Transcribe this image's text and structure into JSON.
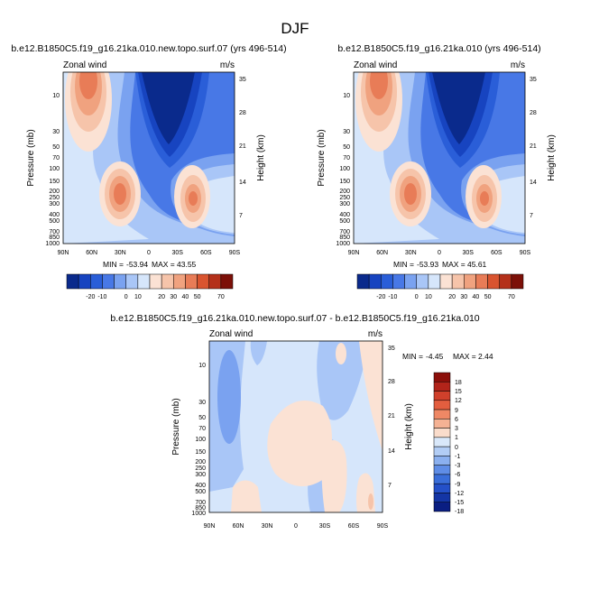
{
  "figure": {
    "title": "DJF"
  },
  "chart_data": [
    {
      "type": "heatmap",
      "title": "b.e12.B1850C5.f19_g16.21ka.010.new.topo.surf.07 (yrs 496-514)",
      "variable": "Zonal wind",
      "units": "m/s",
      "ylabel": "Pressure (mb)",
      "ylabel_right": "Height (km)",
      "x_ticks": [
        "90N",
        "60N",
        "30N",
        "0",
        "30S",
        "60S",
        "90S"
      ],
      "y_ticks": [
        "10",
        "30",
        "50",
        "70",
        "100",
        "150",
        "200",
        "250",
        "300",
        "400",
        "500",
        "700",
        "850",
        "1000"
      ],
      "height_ticks": [
        "35",
        "28",
        "21",
        "14",
        "7"
      ],
      "min": "-53.94",
      "max": "43.55",
      "colorbar_levels": [
        "-20",
        "-10",
        "0",
        "10",
        "20",
        "30",
        "40",
        "50",
        "70"
      ]
    },
    {
      "type": "heatmap",
      "title": "b.e12.B1850C5.f19_g16.21ka.010 (yrs 496-514)",
      "variable": "Zonal wind",
      "units": "m/s",
      "ylabel": "Pressure (mb)",
      "ylabel_right": "Height (km)",
      "x_ticks": [
        "90N",
        "60N",
        "30N",
        "0",
        "30S",
        "60S",
        "90S"
      ],
      "y_ticks": [
        "10",
        "30",
        "50",
        "70",
        "100",
        "150",
        "200",
        "250",
        "300",
        "400",
        "500",
        "700",
        "850",
        "1000"
      ],
      "height_ticks": [
        "35",
        "28",
        "21",
        "14",
        "7"
      ],
      "min": "-53.93",
      "max": "45.61",
      "colorbar_levels": [
        "-20",
        "-10",
        "0",
        "10",
        "20",
        "30",
        "40",
        "50",
        "70"
      ]
    },
    {
      "type": "heatmap",
      "title": "b.e12.B1850C5.f19_g16.21ka.010.new.topo.surf.07 - b.e12.B1850C5.f19_g16.21ka.010",
      "variable": "Zonal wind",
      "units": "m/s",
      "ylabel": "Pressure (mb)",
      "ylabel_right": "Height (km)",
      "x_ticks": [
        "90N",
        "60N",
        "30N",
        "0",
        "30S",
        "60S",
        "90S"
      ],
      "y_ticks": [
        "10",
        "30",
        "50",
        "70",
        "100",
        "150",
        "200",
        "250",
        "300",
        "400",
        "500",
        "700",
        "850",
        "1000"
      ],
      "height_ticks": [
        "35",
        "28",
        "21",
        "14",
        "7"
      ],
      "min": "-4.45",
      "max": "2.44",
      "colorbar_levels": [
        "18",
        "15",
        "12",
        "9",
        "6",
        "3",
        "1",
        "0",
        "-1",
        "-3",
        "-6",
        "-9",
        "-12",
        "-15",
        "-18"
      ]
    }
  ],
  "colors": {
    "hbar": [
      "#0a2a8c",
      "#1744c0",
      "#2a5ed8",
      "#4878e6",
      "#7aa2f0",
      "#a9c6f7",
      "#d6e6fb",
      "#fbe2d4",
      "#f6c4aa",
      "#f0a27f",
      "#e87c57",
      "#d9542f",
      "#b4301a",
      "#7c1008"
    ],
    "vbar": [
      "#8c0f0a",
      "#b2241a",
      "#d0402b",
      "#e35e3f",
      "#ef8865",
      "#f5b294",
      "#fadccb",
      "#d9e8fa",
      "#b2cdf5",
      "#8bb0ef",
      "#5f8de6",
      "#3a6ed9",
      "#2450c8",
      "#1435a5",
      "#0a1e82"
    ],
    "field": {
      "v1": "#f0a27f",
      "v2": "#e87c57",
      "v3": "#d9542f",
      "w1": "#d6e6fb",
      "w2": "#a9c6f7",
      "w3": "#7aa2f0",
      "w4": "#4878e6",
      "e1": "#2a5ed8",
      "e2": "#1744c0",
      "e3": "#0a2a8c",
      "r0": "#fbe2d4",
      "r1": "#f6c4aa"
    }
  }
}
